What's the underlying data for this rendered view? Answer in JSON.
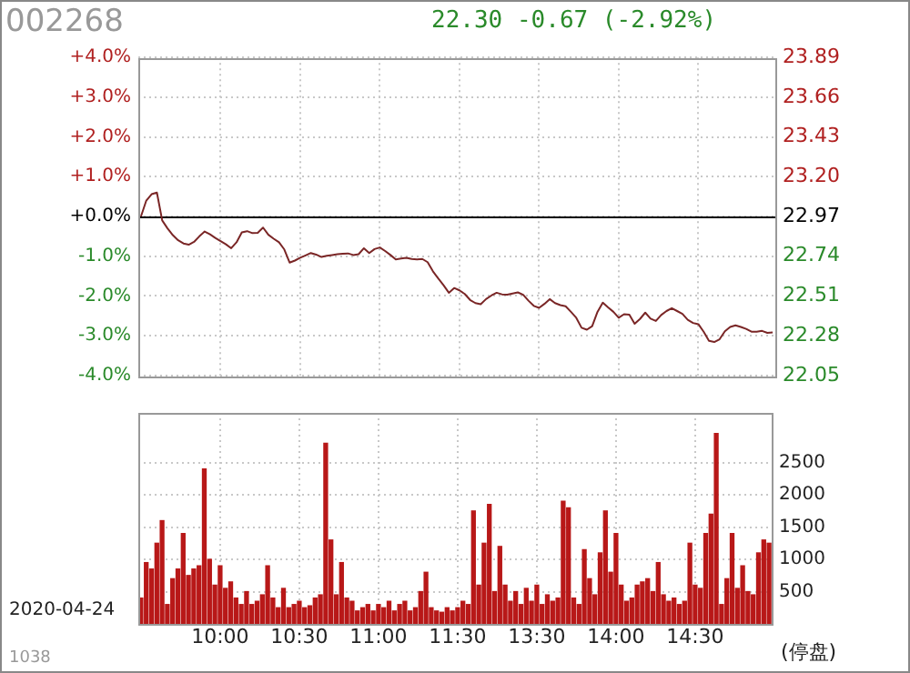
{
  "chart_data": [
    {
      "type": "line",
      "title": "002268",
      "subtitle": "22.30 -0.67 (-2.92%)",
      "categories": [
        null,
        null,
        null,
        null,
        null,
        null,
        null,
        null,
        null,
        null,
        null,
        null,
        null,
        null,
        null,
        null,
        null,
        null,
        null,
        null,
        null,
        null,
        null,
        null,
        null,
        null,
        null,
        null,
        null,
        null,
        null,
        null,
        null,
        null,
        null,
        null,
        null,
        null,
        null,
        null,
        null,
        null,
        null,
        null,
        null,
        null,
        null,
        null,
        null,
        null,
        null,
        null,
        null,
        null,
        null,
        null,
        null,
        null,
        null,
        null,
        null,
        null,
        null,
        null,
        null,
        null,
        null,
        null,
        null,
        null,
        null,
        null,
        null,
        null,
        null,
        null,
        null,
        null,
        null,
        null,
        null,
        null,
        null,
        null,
        null,
        null,
        null,
        null,
        null,
        null,
        null,
        null,
        null,
        null,
        null,
        null,
        null,
        null,
        null,
        null,
        null,
        null,
        null,
        null,
        null,
        null,
        null,
        null,
        null,
        null,
        null,
        null,
        null,
        null,
        null,
        null,
        null,
        null,
        null,
        null
      ],
      "series": [
        {
          "color": "#7a2626",
          "values": [
            0.0,
            0.4,
            0.56,
            0.6,
            -0.1,
            -0.3,
            -0.47,
            -0.6,
            -0.68,
            -0.71,
            -0.64,
            -0.5,
            -0.38,
            -0.45,
            -0.54,
            -0.62,
            -0.7,
            -0.8,
            -0.65,
            -0.4,
            -0.37,
            -0.42,
            -0.41,
            -0.28,
            -0.46,
            -0.56,
            -0.65,
            -0.83,
            -1.16,
            -1.11,
            -1.04,
            -0.98,
            -0.92,
            -0.96,
            -1.02,
            -0.99,
            -0.97,
            -0.95,
            -0.94,
            -0.93,
            -0.97,
            -0.95,
            -0.8,
            -0.92,
            -0.82,
            -0.78,
            -0.87,
            -0.97,
            -1.08,
            -1.06,
            -1.04,
            -1.07,
            -1.08,
            -1.07,
            -1.15,
            -1.38,
            -1.56,
            -1.73,
            -1.92,
            -1.8,
            -1.86,
            -1.95,
            -2.1,
            -2.18,
            -2.21,
            -2.08,
            -1.99,
            -1.92,
            -1.96,
            -1.97,
            -1.94,
            -1.91,
            -1.97,
            -2.12,
            -2.25,
            -2.3,
            -2.2,
            -2.08,
            -2.18,
            -2.23,
            -2.26,
            -2.4,
            -2.55,
            -2.8,
            -2.85,
            -2.76,
            -2.4,
            -2.17,
            -2.29,
            -2.4,
            -2.55,
            -2.46,
            -2.47,
            -2.7,
            -2.58,
            -2.42,
            -2.57,
            -2.63,
            -2.48,
            -2.38,
            -2.31,
            -2.38,
            -2.45,
            -2.6,
            -2.68,
            -2.71,
            -2.9,
            -3.13,
            -3.16,
            -3.09,
            -2.89,
            -2.78,
            -2.74,
            -2.78,
            -2.83,
            -2.9,
            -2.9,
            -2.88,
            -2.93,
            -2.92
          ]
        }
      ],
      "ylim": [
        -4,
        4
      ],
      "yticks": [
        {
          "value": -4,
          "label": "-4.0%"
        },
        {
          "value": -3,
          "label": "-3.0%"
        },
        {
          "value": -2,
          "label": "-2.0%"
        },
        {
          "value": -1,
          "label": "-1.0%"
        },
        {
          "value": 0,
          "label": "+0.0%"
        },
        {
          "value": 1,
          "label": "+1.0%"
        },
        {
          "value": 2,
          "label": "+2.0%"
        },
        {
          "value": 3,
          "label": "+3.0%"
        },
        {
          "value": 4,
          "label": "+4.0%"
        }
      ],
      "y2lim": [
        22.05,
        23.89
      ],
      "y2ticks": [
        22.05,
        22.28,
        22.51,
        22.74,
        22.97,
        {
          "value": 23.2,
          "label": "23.20"
        },
        23.43,
        23.66,
        23.89
      ],
      "ref_lines": [
        {
          "axis": "y",
          "value": 0,
          "color": "#000000"
        }
      ],
      "grid": true
    },
    {
      "type": "bar",
      "xlabel": "(停盘)",
      "annotations": [
        "2020-04-24",
        "1038"
      ],
      "categories": [
        null,
        null,
        null,
        null,
        null,
        null,
        null,
        null,
        null,
        null,
        null,
        null,
        null,
        null,
        null,
        "10:00",
        null,
        null,
        null,
        null,
        null,
        null,
        null,
        null,
        null,
        null,
        null,
        null,
        null,
        null,
        "10:30",
        null,
        null,
        null,
        null,
        null,
        null,
        null,
        null,
        null,
        null,
        null,
        null,
        null,
        null,
        "11:00",
        null,
        null,
        null,
        null,
        null,
        null,
        null,
        null,
        null,
        null,
        null,
        null,
        null,
        null,
        "11:30",
        null,
        null,
        null,
        null,
        null,
        null,
        null,
        null,
        null,
        null,
        null,
        null,
        null,
        null,
        "13:30",
        null,
        null,
        null,
        null,
        null,
        null,
        null,
        null,
        null,
        null,
        null,
        null,
        null,
        null,
        "14:00",
        null,
        null,
        null,
        null,
        null,
        null,
        null,
        null,
        null,
        null,
        null,
        null,
        null,
        null,
        "14:30",
        null,
        null,
        null,
        null,
        null,
        null,
        null,
        null,
        null,
        null,
        null,
        null,
        null,
        null
      ],
      "values": [
        400,
        950,
        850,
        1250,
        1600,
        300,
        700,
        850,
        1400,
        750,
        850,
        900,
        2400,
        1000,
        600,
        900,
        550,
        650,
        400,
        300,
        500,
        300,
        350,
        450,
        900,
        400,
        250,
        550,
        250,
        300,
        350,
        250,
        280,
        400,
        450,
        2800,
        1300,
        450,
        950,
        400,
        350,
        200,
        250,
        300,
        200,
        300,
        250,
        350,
        200,
        300,
        350,
        200,
        250,
        500,
        800,
        250,
        200,
        180,
        250,
        200,
        250,
        350,
        300,
        1750,
        600,
        1250,
        1850,
        500,
        1200,
        600,
        350,
        500,
        300,
        550,
        350,
        600,
        300,
        450,
        350,
        400,
        1900,
        1800,
        400,
        300,
        1150,
        700,
        450,
        1100,
        1750,
        800,
        1400,
        600,
        350,
        400,
        600,
        650,
        700,
        500,
        950,
        450,
        350,
        400,
        300,
        350,
        1250,
        600,
        550,
        1400,
        1700,
        2950,
        300,
        700,
        1400,
        550,
        900,
        500,
        450,
        1100,
        1300,
        1250
      ],
      "color": "#b81818",
      "ylim": [
        0,
        3270
      ],
      "yticks": [
        500,
        1000,
        1500,
        2000,
        2500
      ],
      "grid": true
    }
  ]
}
